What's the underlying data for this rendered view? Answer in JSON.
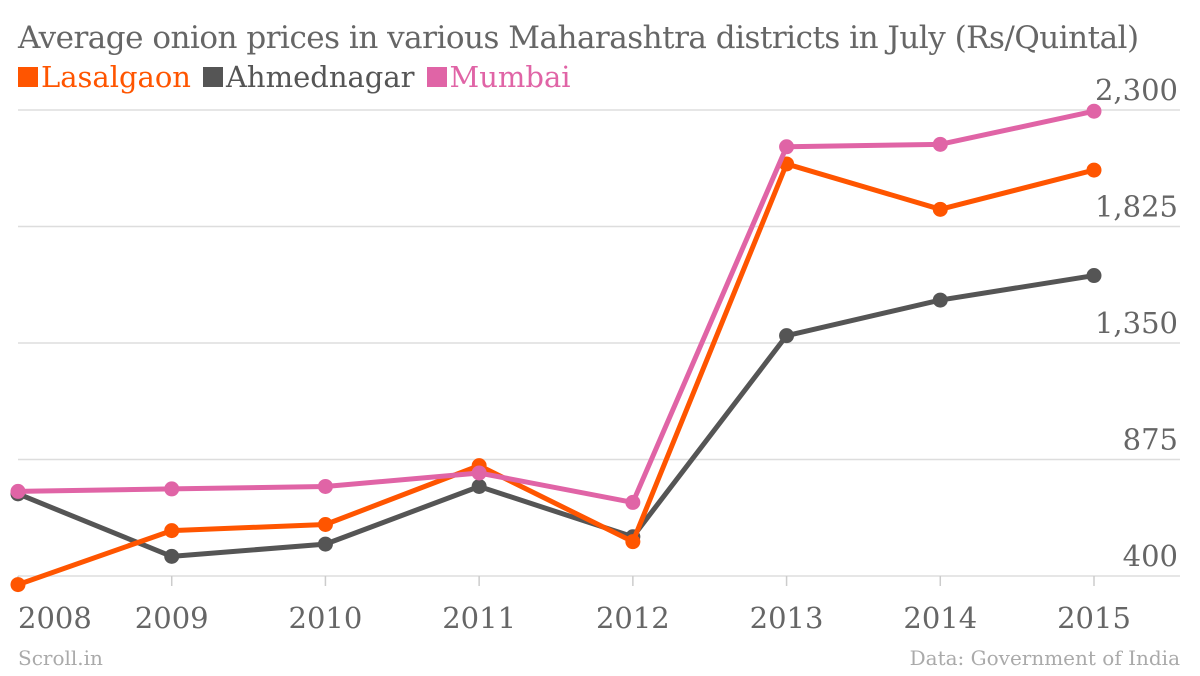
{
  "chart_data": {
    "type": "line",
    "title": "Average onion prices in various Maharashtra districts in July (Rs/Quintal)",
    "categories": [
      "2008",
      "2009",
      "2010",
      "2011",
      "2012",
      "2013",
      "2014",
      "2015"
    ],
    "series": [
      {
        "name": "Lasalgaon",
        "color": "#ff5500",
        "values": [
          365,
          585,
          610,
          850,
          540,
          2080,
          1895,
          2055
        ]
      },
      {
        "name": "Ahmednagar",
        "color": "#555555",
        "values": [
          735,
          480,
          530,
          765,
          560,
          1380,
          1525,
          1625
        ]
      },
      {
        "name": "Mumbai",
        "color": "#e064a6",
        "values": [
          745,
          755,
          765,
          820,
          700,
          2150,
          2160,
          2295
        ]
      }
    ],
    "y_ticks": [
      "2,300",
      "1,825",
      "1,350",
      "875",
      "400"
    ],
    "y_tick_values": [
      2300,
      1825,
      1350,
      875,
      400
    ],
    "ylim": [
      400,
      2300
    ],
    "grid": true,
    "legend_position": "top-left"
  },
  "footer": {
    "source_left": "Scroll.in",
    "source_right": "Data: Government of India"
  }
}
